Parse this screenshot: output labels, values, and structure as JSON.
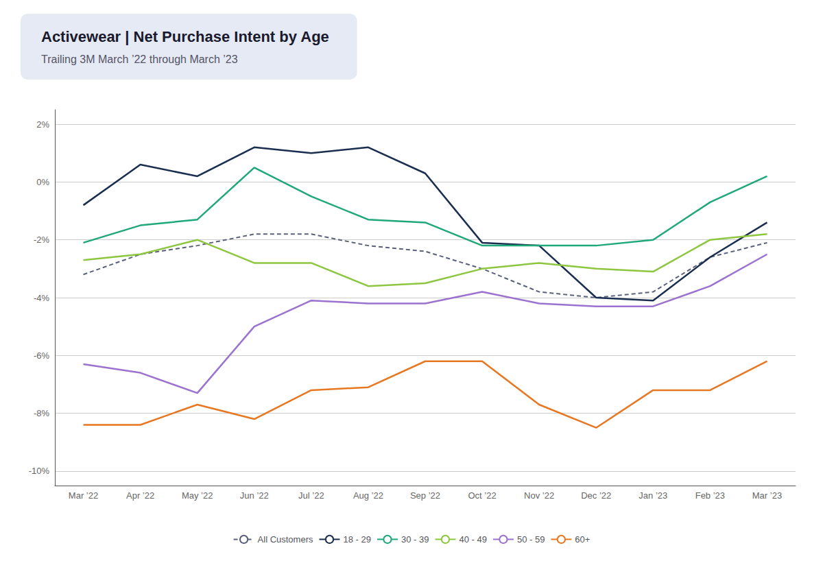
{
  "chart_data": {
    "type": "line",
    "title": "Activewear | Net Purchase Intent by Age",
    "subtitle": "Trailing 3M March ’22 through March ’23",
    "categories": [
      "Mar ’22",
      "Apr ’22",
      "May ’22",
      "Jun ’22",
      "Jul ’22",
      "Aug ’22",
      "Sep ’22",
      "Oct ’22",
      "Nov ’22",
      "Dec ’22",
      "Jan ’23",
      "Feb ’23",
      "Mar ’23"
    ],
    "series": [
      {
        "name": "All Customers",
        "color": "#5a607a",
        "line_style": "dashed",
        "values": [
          -0.032,
          -0.025,
          -0.022,
          -0.018,
          -0.018,
          -0.022,
          -0.024,
          -0.03,
          -0.038,
          -0.04,
          -0.038,
          -0.026,
          -0.021
        ]
      },
      {
        "name": "18 - 29",
        "color": "#1a2e50",
        "line_style": "solid",
        "values": [
          -0.008,
          0.006,
          0.002,
          0.012,
          0.01,
          0.012,
          0.003,
          -0.021,
          -0.022,
          -0.04,
          -0.041,
          -0.026,
          -0.014
        ]
      },
      {
        "name": "30 - 39",
        "color": "#1fa878",
        "line_style": "solid",
        "values": [
          -0.021,
          -0.015,
          -0.013,
          0.005,
          -0.005,
          -0.013,
          -0.014,
          -0.022,
          -0.022,
          -0.022,
          -0.02,
          -0.007,
          0.002
        ]
      },
      {
        "name": "40 - 49",
        "color": "#8dc63f",
        "line_style": "solid",
        "values": [
          -0.027,
          -0.025,
          -0.02,
          -0.028,
          -0.028,
          -0.036,
          -0.035,
          -0.03,
          -0.028,
          -0.03,
          -0.031,
          -0.02,
          -0.018
        ]
      },
      {
        "name": "50 - 59",
        "color": "#9b72cf",
        "line_style": "solid",
        "values": [
          -0.063,
          -0.066,
          -0.073,
          -0.05,
          -0.041,
          -0.042,
          -0.042,
          -0.038,
          -0.042,
          -0.043,
          -0.043,
          -0.036,
          -0.025
        ]
      },
      {
        "name": "60+",
        "color": "#e87722",
        "line_style": "solid",
        "values": [
          -0.084,
          -0.084,
          -0.077,
          -0.082,
          -0.072,
          -0.071,
          -0.062,
          -0.062,
          -0.077,
          -0.085,
          -0.072,
          -0.072,
          -0.062
        ]
      }
    ],
    "ylim": [
      -0.105,
      0.025
    ],
    "yticks": [
      {
        "value": 0.02,
        "label": "2%"
      },
      {
        "value": 0.0,
        "label": "0%"
      },
      {
        "value": -0.02,
        "label": "-2%"
      },
      {
        "value": -0.04,
        "label": "-4%"
      },
      {
        "value": -0.06,
        "label": "-6%"
      },
      {
        "value": -0.08,
        "label": "-8%"
      },
      {
        "value": -0.1,
        "label": "-10%"
      }
    ],
    "grid": true,
    "legend": "bottom"
  }
}
